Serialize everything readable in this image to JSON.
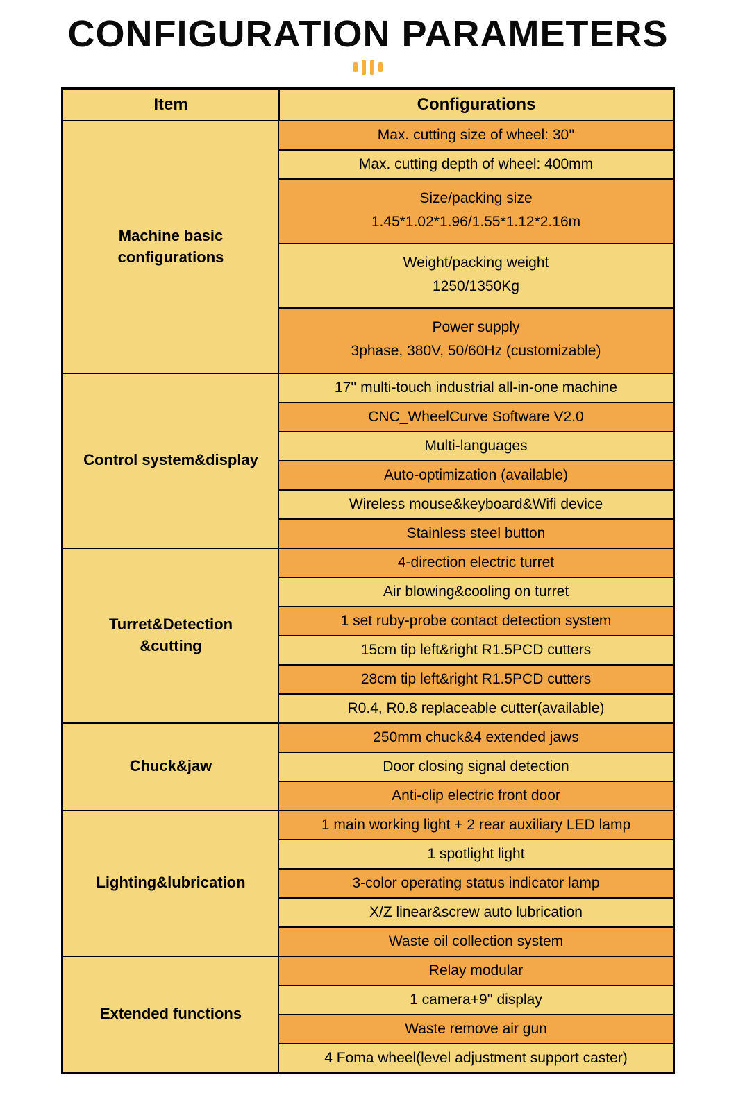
{
  "title": "CONFIGURATION PARAMETERS",
  "colors": {
    "header_bg": "#f5d77e",
    "cat_bg": "#f5d77e",
    "row_alt1": "#f3a94a",
    "row_alt2": "#f5d77e",
    "border": "#000000",
    "text": "#000000",
    "accent": "#f6b13c"
  },
  "table": {
    "headers": {
      "item": "Item",
      "config": "Configurations"
    },
    "sections": [
      {
        "category": "Machine basic\nconfigurations",
        "rows": [
          {
            "text": "Max. cutting size of wheel: 30''"
          },
          {
            "text": "Max. cutting depth of wheel: 400mm"
          },
          {
            "text": "Size/packing size\n1.45*1.02*1.96/1.55*1.12*2.16m",
            "multiline": true
          },
          {
            "text": "Weight/packing weight\n1250/1350Kg",
            "multiline": true
          },
          {
            "text": "Power supply\n3phase, 380V, 50/60Hz (customizable)",
            "multiline": true
          }
        ]
      },
      {
        "category": "Control system&display",
        "rows": [
          {
            "text": "17'' multi-touch industrial all-in-one machine"
          },
          {
            "text": "CNC_WheelCurve Software V2.0"
          },
          {
            "text": "Multi-languages"
          },
          {
            "text": "Auto-optimization (available)"
          },
          {
            "text": "Wireless mouse&keyboard&Wifi device"
          },
          {
            "text": "Stainless steel button"
          }
        ]
      },
      {
        "category": "Turret&Detection\n&cutting",
        "rows": [
          {
            "text": "4-direction electric turret"
          },
          {
            "text": "Air blowing&cooling on turret"
          },
          {
            "text": "1 set ruby-probe contact detection system"
          },
          {
            "text": "15cm tip left&right R1.5PCD cutters"
          },
          {
            "text": "28cm tip left&right R1.5PCD cutters"
          },
          {
            "text": "R0.4, R0.8 replaceable cutter(available)"
          }
        ]
      },
      {
        "category": "Chuck&jaw",
        "rows": [
          {
            "text": "250mm chuck&4 extended jaws"
          },
          {
            "text": "Door closing signal detection"
          },
          {
            "text": "Anti-clip electric front door"
          }
        ]
      },
      {
        "category": "Lighting&lubrication",
        "rows": [
          {
            "text": "1 main working light + 2 rear auxiliary LED lamp"
          },
          {
            "text": "1 spotlight light"
          },
          {
            "text": "3-color operating status indicator lamp"
          },
          {
            "text": "X/Z linear&screw auto lubrication"
          },
          {
            "text": "Waste oil collection system"
          }
        ]
      },
      {
        "category": "Extended functions",
        "rows": [
          {
            "text": "Relay modular"
          },
          {
            "text": "1 camera+9'' display"
          },
          {
            "text": "Waste remove air gun"
          },
          {
            "text": "4 Foma wheel(level adjustment support caster)"
          }
        ]
      }
    ]
  }
}
